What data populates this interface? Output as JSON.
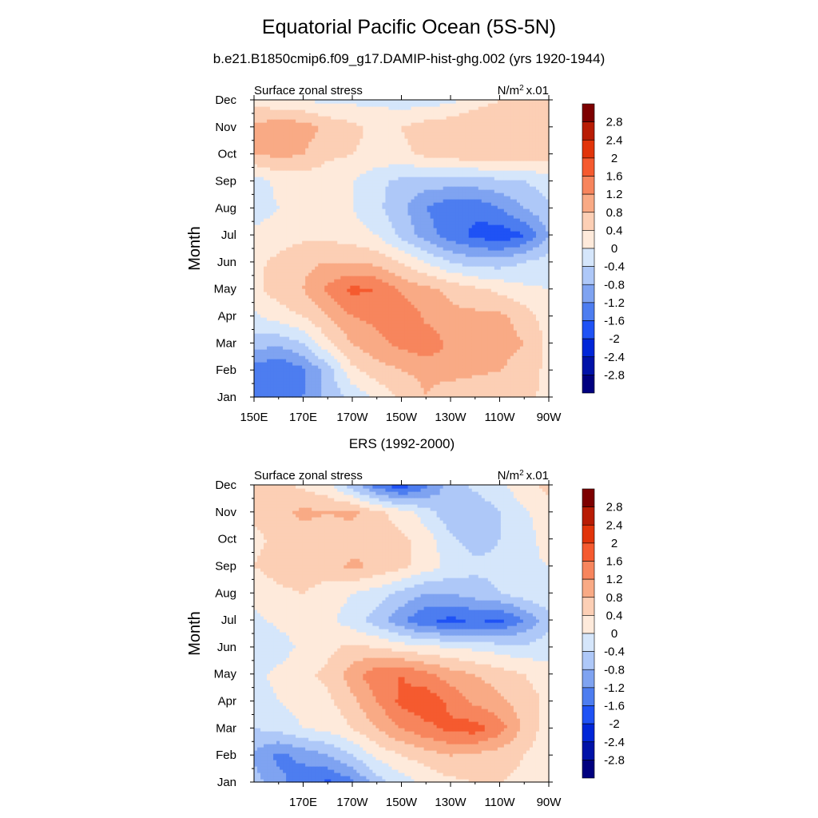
{
  "figure": {
    "title": "Equatorial Pacific Ocean (5S-5N)",
    "panel_titles": [
      "b.e21.B1850cmip6.f09_g17.DAMIP-hist-ghg.002 (yrs 1920-1944)",
      "ERS (1992-2000)"
    ]
  },
  "chart_data": [
    {
      "type": "heatmap",
      "title": "b.e21.B1850cmip6.f09_g17.DAMIP-hist-ghg.002 (yrs 1920-1944)",
      "left_string": "Surface zonal stress",
      "right_string": "N/m² x.01",
      "ylabel": "Month",
      "xlabel": "",
      "xlim": [
        150,
        270
      ],
      "x_ticks": [
        150,
        170,
        190,
        210,
        230,
        250,
        270
      ],
      "x_tick_labels": [
        "150E",
        "170E",
        "170W",
        "150W",
        "130W",
        "110W",
        "90W"
      ],
      "y_tick_labels": [
        "Jan",
        "Feb",
        "Mar",
        "Apr",
        "May",
        "Jun",
        "Jul",
        "Aug",
        "Sep",
        "Oct",
        "Nov",
        "Dec"
      ],
      "colorbar_labels": [
        "2.8",
        "2.4",
        "2",
        "1.6",
        "1.2",
        "0.8",
        "0.4",
        "0",
        "-0.4",
        "-0.8",
        "-1.2",
        "-1.6",
        "-2",
        "-2.4",
        "-2.8"
      ],
      "lon": [
        150,
        160,
        170,
        180,
        190,
        200,
        210,
        220,
        230,
        240,
        250,
        260,
        270
      ],
      "months": [
        "Jan",
        "Feb",
        "Mar",
        "Apr",
        "May",
        "Jun",
        "Jul",
        "Aug",
        "Sep",
        "Oct",
        "Nov",
        "Dec"
      ],
      "values": [
        [
          -1.4,
          -1.5,
          -1.2,
          -0.7,
          -0.3,
          0.1,
          0.5,
          0.8,
          0.5,
          0.4,
          0.4,
          0.5,
          0.3
        ],
        [
          -1.4,
          -1.6,
          -1.3,
          -0.6,
          0.3,
          0.6,
          0.8,
          0.9,
          1.0,
          0.9,
          0.8,
          0.6,
          0.3
        ],
        [
          -0.6,
          -0.7,
          -0.4,
          0.3,
          0.8,
          1.1,
          1.3,
          1.5,
          1.1,
          1.0,
          1.0,
          0.8,
          0.3
        ],
        [
          -0.1,
          0.2,
          0.4,
          0.8,
          1.2,
          1.3,
          1.6,
          1.1,
          0.9,
          0.9,
          0.9,
          0.6,
          0.2
        ],
        [
          0.3,
          0.6,
          0.8,
          1.3,
          1.7,
          1.6,
          1.1,
          0.9,
          0.7,
          0.5,
          0.3,
          0.1,
          0.0
        ],
        [
          0.3,
          0.5,
          0.7,
          0.8,
          0.8,
          0.7,
          0.4,
          0.0,
          -0.4,
          -0.6,
          -0.6,
          -0.4,
          -0.2
        ],
        [
          0.1,
          0.2,
          0.3,
          0.3,
          0.2,
          0.0,
          -0.5,
          -1.0,
          -1.4,
          -1.7,
          -1.9,
          -1.6,
          -0.8
        ],
        [
          -0.2,
          0.0,
          0.1,
          0.1,
          0.0,
          -0.3,
          -0.7,
          -1.2,
          -1.5,
          -1.5,
          -1.2,
          -0.8,
          -0.5
        ],
        [
          -0.2,
          0.1,
          0.2,
          0.1,
          0.0,
          -0.3,
          -0.5,
          -0.6,
          -0.6,
          -0.6,
          -0.5,
          -0.4,
          -0.2
        ],
        [
          0.8,
          0.9,
          0.8,
          0.5,
          0.4,
          0.3,
          0.3,
          0.5,
          0.6,
          0.7,
          0.7,
          0.6,
          0.6
        ],
        [
          0.9,
          1.1,
          1.0,
          0.7,
          0.5,
          0.3,
          0.4,
          0.6,
          0.7,
          0.8,
          0.8,
          0.8,
          0.7
        ],
        [
          0.2,
          0.1,
          0.0,
          -0.1,
          -0.1,
          -0.1,
          -0.2,
          -0.2,
          -0.1,
          0.2,
          0.4,
          0.5,
          0.5
        ]
      ]
    },
    {
      "type": "heatmap",
      "title": "ERS (1992-2000)",
      "left_string": "Surface zonal stress",
      "right_string": "N/m² x.01",
      "ylabel": "Month",
      "xlabel": "",
      "xlim": [
        150,
        270
      ],
      "x_ticks": [
        170,
        190,
        210,
        230,
        250,
        270
      ],
      "x_tick_labels": [
        "170E",
        "170W",
        "150W",
        "130W",
        "110W",
        "90W"
      ],
      "y_tick_labels": [
        "Jan",
        "Feb",
        "Mar",
        "Apr",
        "May",
        "Jun",
        "Jul",
        "Aug",
        "Sep",
        "Oct",
        "Nov",
        "Dec"
      ],
      "colorbar_labels": [
        "2.8",
        "2.4",
        "2",
        "1.6",
        "1.2",
        "0.8",
        "0.4",
        "0",
        "-0.4",
        "-0.8",
        "-1.2",
        "-1.6",
        "-2",
        "-2.4",
        "-2.8"
      ],
      "lon": [
        150,
        160,
        170,
        180,
        190,
        200,
        210,
        220,
        230,
        240,
        250,
        260,
        270
      ],
      "months": [
        "Jan",
        "Feb",
        "Mar",
        "Apr",
        "May",
        "Jun",
        "Jul",
        "Aug",
        "Sep",
        "Oct",
        "Nov",
        "Dec"
      ],
      "values": [
        [
          -0.6,
          -1.1,
          -1.4,
          -1.7,
          -1.3,
          -0.6,
          -0.2,
          0.1,
          0.3,
          0.4,
          0.4,
          0.3,
          0.1
        ],
        [
          -0.9,
          -1.3,
          -1.1,
          -0.8,
          -0.4,
          0.1,
          0.4,
          0.6,
          0.8,
          0.7,
          0.6,
          0.4,
          0.1
        ],
        [
          -0.4,
          -0.3,
          0.0,
          0.1,
          0.4,
          0.8,
          1.2,
          1.5,
          1.7,
          1.8,
          1.4,
          0.7,
          0.2
        ],
        [
          -0.2,
          0.0,
          0.2,
          0.3,
          0.7,
          1.2,
          1.7,
          1.9,
          1.5,
          1.1,
          0.9,
          0.6,
          0.3
        ],
        [
          -0.1,
          0.1,
          0.3,
          0.5,
          1.0,
          1.5,
          1.6,
          1.3,
          1.0,
          0.8,
          0.6,
          0.4,
          0.2
        ],
        [
          -0.4,
          -0.2,
          0.1,
          0.3,
          0.5,
          0.4,
          0.2,
          0.1,
          0.0,
          -0.1,
          -0.2,
          -0.3,
          -0.2
        ],
        [
          -0.1,
          0.1,
          0.2,
          0.1,
          -0.2,
          -0.6,
          -1.1,
          -1.6,
          -1.7,
          -1.6,
          -1.7,
          -1.2,
          -0.5
        ],
        [
          0.1,
          0.3,
          0.4,
          0.2,
          0.0,
          -0.2,
          -0.5,
          -0.8,
          -0.8,
          -0.6,
          -0.4,
          -0.2,
          -0.1
        ],
        [
          0.4,
          0.6,
          0.7,
          0.6,
          0.9,
          0.7,
          0.5,
          0.2,
          -0.1,
          -0.3,
          -0.3,
          -0.1,
          0.0
        ],
        [
          0.3,
          0.5,
          0.6,
          0.6,
          0.6,
          0.7,
          0.5,
          0.2,
          -0.3,
          -0.6,
          -0.4,
          -0.2,
          0.2
        ],
        [
          0.5,
          0.7,
          0.9,
          0.8,
          0.9,
          0.5,
          0.2,
          -0.2,
          -0.7,
          -0.7,
          -0.4,
          -0.1,
          0.3
        ],
        [
          0.4,
          0.5,
          0.3,
          0.1,
          -0.6,
          -1.4,
          -1.9,
          -1.3,
          -0.6,
          -0.3,
          -0.1,
          0.3,
          0.5
        ]
      ]
    }
  ],
  "colorbar": {
    "levels": [
      -2.8,
      -2.4,
      -2.0,
      -1.6,
      -1.2,
      -0.8,
      -0.4,
      0,
      0.4,
      0.8,
      1.2,
      1.6,
      2.0,
      2.4,
      2.8
    ],
    "colors": [
      "#00007f",
      "#0012a8",
      "#0026d8",
      "#1f52f5",
      "#4d7df0",
      "#7fa3f1",
      "#aec8f8",
      "#d5e6fb",
      "#feeadb",
      "#fccfb5",
      "#f9aa85",
      "#f7855d",
      "#f55a2f",
      "#e1340a",
      "#b81c04",
      "#7d0000"
    ]
  }
}
